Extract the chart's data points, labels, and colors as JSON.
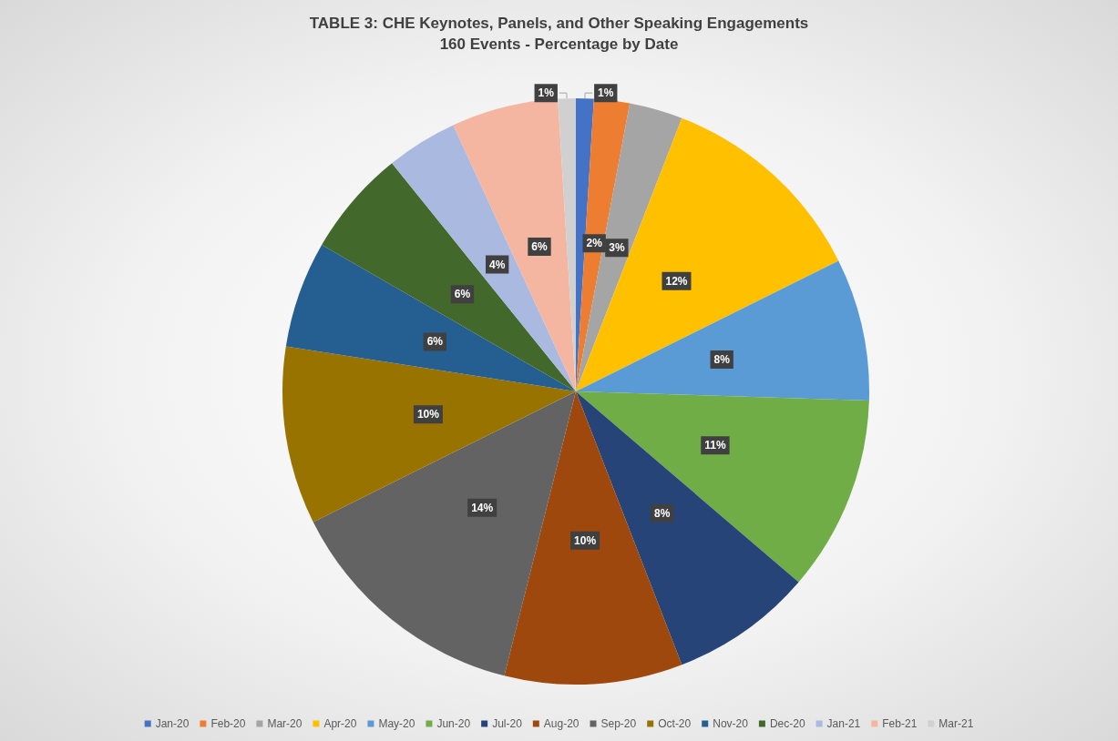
{
  "chart_data": {
    "type": "pie",
    "title": "TABLE 3: CHE Keynotes, Panels, and Other Speaking Engagements",
    "subtitle": "160 Events - Percentage by Date",
    "categories": [
      "Jan-20",
      "Feb-20",
      "Mar-20",
      "Apr-20",
      "May-20",
      "Jun-20",
      "Jul-20",
      "Aug-20",
      "Sep-20",
      "Oct-20",
      "Nov-20",
      "Dec-20",
      "Jan-21",
      "Feb-21",
      "Mar-21"
    ],
    "values": [
      1,
      2,
      3,
      12,
      8,
      11,
      8,
      10,
      14,
      10,
      6,
      6,
      4,
      6,
      1
    ],
    "value_labels": [
      "1%",
      "2%",
      "3%",
      "12%",
      "8%",
      "11%",
      "8%",
      "10%",
      "14%",
      "10%",
      "6%",
      "6%",
      "4%",
      "6%",
      "1%"
    ],
    "colors": [
      "#4472c4",
      "#ed7d31",
      "#a5a5a5",
      "#ffc000",
      "#5b9bd5",
      "#70ad47",
      "#264478",
      "#9e480e",
      "#636363",
      "#997300",
      "#255e91",
      "#43682b",
      "#a9b9e0",
      "#f4b6a0",
      "#d0d0d0"
    ],
    "legend": "bottom"
  }
}
